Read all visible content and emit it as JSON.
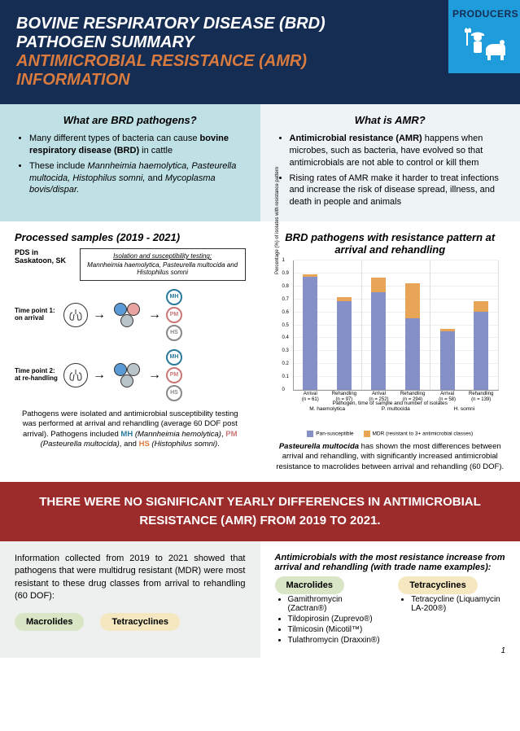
{
  "header": {
    "title_line1": "BOVINE RESPIRATORY DISEASE (BRD)",
    "title_line2": "PATHOGEN SUMMARY",
    "subtitle_line1": "ANTIMICROBIAL RESISTANCE (AMR)",
    "subtitle_line2": "INFORMATION",
    "audience_label": "PRODUCERS",
    "colors": {
      "bg": "#152d52",
      "accent": "#d97b3e",
      "audience_bg": "#1f9cdb"
    }
  },
  "info": {
    "left_heading": "What are BRD pathogens?",
    "left_bullets": [
      "Many different types of bacteria can cause <b>bovine respiratory disease (BRD)</b> in cattle",
      "These include <i>Mannheimia haemolytica, Pasteurella multocida, Histophilus somni,</i> and <i>Mycoplasma bovis/dispar.</i>"
    ],
    "right_heading": "What is AMR?",
    "right_bullets": [
      "<b>Antimicrobial resistance (AMR)</b> happens when microbes, such as bacteria, have evolved so that antimicrobials are not able to control or kill them",
      "Rising rates of AMR make it harder to treat infections and increase the risk of disease spread, illness, and death in people and animals"
    ]
  },
  "processed": {
    "heading": "Processed samples (2019 - 2021)",
    "pds_label": "PDS in Saskatoon, SK",
    "iso_title": "Isolation and susceptibility testing:",
    "iso_sub": "Mannheimia haemolytica, Pasteurella multocida and Histophilus somni",
    "tp1": "Time point 1:\non arrival",
    "tp2": "Time point 2:\nat re-handling",
    "badges": {
      "mh": "MH",
      "pm": "PM",
      "hs": "HS"
    },
    "caption": "Pathogens were isolated and antimicrobial susceptibility testing was performed at arrival and rehandling (average 60 DOF post arrival). Pathogens included ",
    "mh_full": "MH",
    "mh_експ": " (Mannheimia hemolytica)",
    "pm_full": "PM",
    "pm_exp": " (Pasteurella multocida)",
    "hs_full": "HS",
    "hs_exp": " (Histophilus somni)",
    "caption_end": ", and "
  },
  "chart": {
    "heading": "BRD pathogens with resistance pattern at arrival and rehandling",
    "ylabel": "Percentage (%) of isolates with resistance pattern",
    "ymax": 1.0,
    "yticks": [
      0,
      0.1,
      0.2,
      0.3,
      0.4,
      0.5,
      0.6,
      0.7,
      0.8,
      0.9,
      1.0
    ],
    "groups": [
      {
        "label": "Arrival",
        "n": "(n = 61)",
        "pan": 0.87,
        "mdr": 0.02,
        "pathogen": "M. haemolytica"
      },
      {
        "label": "Rehandling",
        "n": "(n = 97)",
        "pan": 0.68,
        "mdr": 0.03,
        "pathogen": ""
      },
      {
        "label": "Arrival",
        "n": "(n = 252)",
        "pan": 0.75,
        "mdr": 0.11,
        "pathogen": "P. multocida"
      },
      {
        "label": "Rehandling",
        "n": "(n = 294)",
        "pan": 0.55,
        "mdr": 0.27,
        "pathogen": ""
      },
      {
        "label": "Arrival",
        "n": "(n = 58)",
        "pan": 0.45,
        "mdr": 0.02,
        "pathogen": "H. somni"
      },
      {
        "label": "Rehandling",
        "n": "(n = 139)",
        "pan": 0.6,
        "mdr": 0.08,
        "pathogen": ""
      }
    ],
    "xlabel": "Pathogen, time of sample and number of isolates",
    "legend_pan": "Pan-susceptible",
    "legend_mdr": "MDR (resistant to 3+ antimicrobial classes)",
    "colors": {
      "pan": "#8690c8",
      "mdr": "#e8a558"
    },
    "caption_bold": "Pasteurella multocida",
    "caption_rest": " has shown the most differences between arrival and rehandling, with significantly increased antimicrobial resistance to macrolides between arrival and rehandling (60 DOF)."
  },
  "banner": "THERE WERE NO SIGNIFICANT YEARLY DIFFERENCES IN ANTIMICROBIAL RESISTANCE (AMR) FROM 2019 TO 2021.",
  "bottom_left": {
    "text": "Information collected from 2019 to 2021 showed that pathogens that were multidrug resistant (MDR) were most resistant to these drug classes from arrival to rehandling (60 DOF):",
    "pill1": "Macrolides",
    "pill2": "Tetracyclines"
  },
  "bottom_right": {
    "heading": "Antimicrobials with the most resistance increase from arrival and rehandling (with trade name examples):",
    "col1_label": "Macrolides",
    "col1_items": [
      "Gamithromycin (Zactran®)",
      "Tildopirosin (Zuprevo®)",
      "Tilmicosin (Micotil™)",
      "Tulathromycin (Draxxin®)"
    ],
    "col2_label": "Tetracyclines",
    "col2_items": [
      "Tetracycline (Liquamycin LA-200®)"
    ]
  },
  "page_num": "1"
}
